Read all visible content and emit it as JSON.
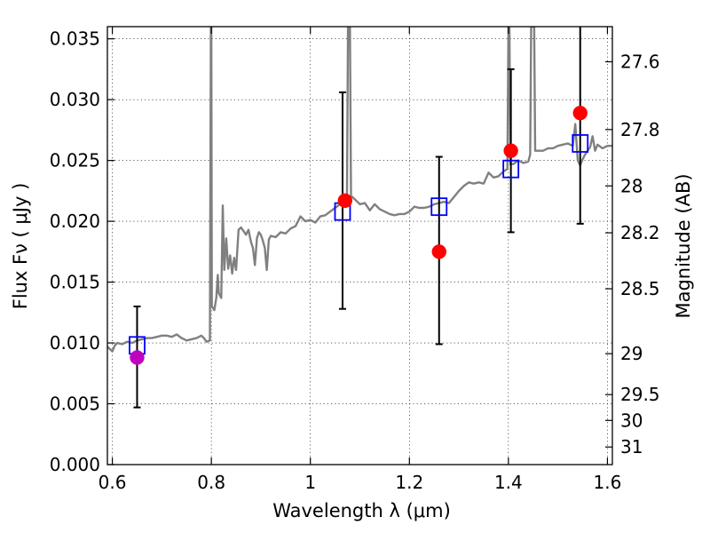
{
  "chart_data": {
    "type": "scatter",
    "xlabel": "Wavelength  λ (μm)",
    "ylabel_left": "Flux  Fν  ( μJy )",
    "ylabel_right": "Magnitude (AB)",
    "xlim": [
      0.59,
      1.61
    ],
    "ylim": [
      0.0,
      0.036
    ],
    "grid": true,
    "x_ticks": [
      {
        "value": 0.6,
        "label": "0.6"
      },
      {
        "value": 0.8,
        "label": "0.8"
      },
      {
        "value": 1.0,
        "label": "1"
      },
      {
        "value": 1.2,
        "label": "1.2"
      },
      {
        "value": 1.4,
        "label": "1.4"
      },
      {
        "value": 1.6,
        "label": "1.6"
      }
    ],
    "y_ticks": [
      {
        "value": 0.0,
        "label": "0.000"
      },
      {
        "value": 0.005,
        "label": "0.005"
      },
      {
        "value": 0.01,
        "label": "0.010"
      },
      {
        "value": 0.015,
        "label": "0.015"
      },
      {
        "value": 0.02,
        "label": "0.020"
      },
      {
        "value": 0.025,
        "label": "0.025"
      },
      {
        "value": 0.03,
        "label": "0.030"
      },
      {
        "value": 0.035,
        "label": "0.035"
      }
    ],
    "mag_ticks": [
      {
        "value": 27.6,
        "label": "27.6"
      },
      {
        "value": 27.8,
        "label": "27.8"
      },
      {
        "value": 28.0,
        "label": "28"
      },
      {
        "value": 28.2,
        "label": "28.2"
      },
      {
        "value": 28.5,
        "label": "28.5"
      },
      {
        "value": 29.0,
        "label": "29"
      },
      {
        "value": 29.5,
        "label": "29.5"
      },
      {
        "value": 30.0,
        "label": "30"
      },
      {
        "value": 31.0,
        "label": "31"
      }
    ],
    "model_spectrum": {
      "color": "#808080",
      "points": [
        [
          0.59,
          0.0097
        ],
        [
          0.595,
          0.0095
        ],
        [
          0.6,
          0.0093
        ],
        [
          0.605,
          0.0098
        ],
        [
          0.61,
          0.01
        ],
        [
          0.62,
          0.0099
        ],
        [
          0.63,
          0.0101
        ],
        [
          0.64,
          0.01
        ],
        [
          0.65,
          0.0102
        ],
        [
          0.66,
          0.0103
        ],
        [
          0.67,
          0.0104
        ],
        [
          0.68,
          0.0104
        ],
        [
          0.69,
          0.0105
        ],
        [
          0.7,
          0.0106
        ],
        [
          0.71,
          0.0106
        ],
        [
          0.72,
          0.0105
        ],
        [
          0.73,
          0.0107
        ],
        [
          0.74,
          0.0104
        ],
        [
          0.75,
          0.0102
        ],
        [
          0.76,
          0.0103
        ],
        [
          0.77,
          0.0104
        ],
        [
          0.78,
          0.0106
        ],
        [
          0.785,
          0.0104
        ],
        [
          0.79,
          0.0101
        ],
        [
          0.797,
          0.0102
        ],
        [
          0.799,
          0.036
        ],
        [
          0.8,
          0.036
        ],
        [
          0.801,
          0.013
        ],
        [
          0.806,
          0.0127
        ],
        [
          0.81,
          0.0137
        ],
        [
          0.813,
          0.0156
        ],
        [
          0.815,
          0.0141
        ],
        [
          0.82,
          0.0137
        ],
        [
          0.823,
          0.0213
        ],
        [
          0.826,
          0.016
        ],
        [
          0.83,
          0.0186
        ],
        [
          0.834,
          0.0161
        ],
        [
          0.838,
          0.0172
        ],
        [
          0.842,
          0.0157
        ],
        [
          0.846,
          0.017
        ],
        [
          0.85,
          0.016
        ],
        [
          0.855,
          0.0193
        ],
        [
          0.86,
          0.0195
        ],
        [
          0.865,
          0.0192
        ],
        [
          0.87,
          0.0189
        ],
        [
          0.875,
          0.0193
        ],
        [
          0.88,
          0.0183
        ],
        [
          0.884,
          0.0178
        ],
        [
          0.888,
          0.0164
        ],
        [
          0.892,
          0.0186
        ],
        [
          0.896,
          0.0191
        ],
        [
          0.9,
          0.0189
        ],
        [
          0.904,
          0.0184
        ],
        [
          0.908,
          0.0178
        ],
        [
          0.912,
          0.016
        ],
        [
          0.916,
          0.0185
        ],
        [
          0.92,
          0.0188
        ],
        [
          0.93,
          0.0187
        ],
        [
          0.94,
          0.0191
        ],
        [
          0.95,
          0.019
        ],
        [
          0.96,
          0.0194
        ],
        [
          0.97,
          0.0196
        ],
        [
          0.98,
          0.0204
        ],
        [
          0.99,
          0.02
        ],
        [
          1.0,
          0.0201
        ],
        [
          1.01,
          0.0199
        ],
        [
          1.02,
          0.0204
        ],
        [
          1.03,
          0.0205
        ],
        [
          1.04,
          0.0208
        ],
        [
          1.05,
          0.0211
        ],
        [
          1.06,
          0.0214
        ],
        [
          1.07,
          0.022
        ],
        [
          1.074,
          0.0222
        ],
        [
          1.076,
          0.036
        ],
        [
          1.08,
          0.036
        ],
        [
          1.082,
          0.0221
        ],
        [
          1.09,
          0.0218
        ],
        [
          1.1,
          0.0214
        ],
        [
          1.11,
          0.0215
        ],
        [
          1.12,
          0.0209
        ],
        [
          1.13,
          0.0214
        ],
        [
          1.14,
          0.021
        ],
        [
          1.15,
          0.0208
        ],
        [
          1.16,
          0.0206
        ],
        [
          1.17,
          0.0205
        ],
        [
          1.18,
          0.0206
        ],
        [
          1.19,
          0.0206
        ],
        [
          1.2,
          0.0208
        ],
        [
          1.21,
          0.0212
        ],
        [
          1.22,
          0.0211
        ],
        [
          1.23,
          0.0211
        ],
        [
          1.24,
          0.0212
        ],
        [
          1.25,
          0.0214
        ],
        [
          1.26,
          0.0215
        ],
        [
          1.27,
          0.0216
        ],
        [
          1.28,
          0.0215
        ],
        [
          1.29,
          0.022
        ],
        [
          1.3,
          0.0225
        ],
        [
          1.31,
          0.0229
        ],
        [
          1.32,
          0.0232
        ],
        [
          1.33,
          0.0231
        ],
        [
          1.34,
          0.0232
        ],
        [
          1.35,
          0.0231
        ],
        [
          1.36,
          0.024
        ],
        [
          1.37,
          0.0236
        ],
        [
          1.38,
          0.0237
        ],
        [
          1.39,
          0.0241
        ],
        [
          1.398,
          0.0243
        ],
        [
          1.4,
          0.036
        ],
        [
          1.402,
          0.036
        ],
        [
          1.404,
          0.0247
        ],
        [
          1.41,
          0.0247
        ],
        [
          1.42,
          0.025
        ],
        [
          1.43,
          0.0248
        ],
        [
          1.44,
          0.0249
        ],
        [
          1.444,
          0.0255
        ],
        [
          1.446,
          0.036
        ],
        [
          1.452,
          0.036
        ],
        [
          1.454,
          0.0258
        ],
        [
          1.46,
          0.0258
        ],
        [
          1.47,
          0.0258
        ],
        [
          1.48,
          0.026
        ],
        [
          1.49,
          0.026
        ],
        [
          1.5,
          0.0262
        ],
        [
          1.51,
          0.0263
        ],
        [
          1.52,
          0.0264
        ],
        [
          1.53,
          0.0262
        ],
        [
          1.535,
          0.028
        ],
        [
          1.54,
          0.025
        ],
        [
          1.545,
          0.0246
        ],
        [
          1.55,
          0.0251
        ],
        [
          1.555,
          0.0255
        ],
        [
          1.56,
          0.0258
        ],
        [
          1.565,
          0.0261
        ],
        [
          1.57,
          0.027
        ],
        [
          1.575,
          0.0258
        ],
        [
          1.58,
          0.0263
        ],
        [
          1.59,
          0.026
        ],
        [
          1.6,
          0.0262
        ],
        [
          1.61,
          0.0262
        ]
      ]
    },
    "error_bars": [
      {
        "x": 0.65,
        "low": 0.0047,
        "high": 0.013
      },
      {
        "x": 1.065,
        "low": 0.0128,
        "high": 0.0306
      },
      {
        "x": 1.26,
        "low": 0.0099,
        "high": 0.0253
      },
      {
        "x": 1.405,
        "low": 0.0191,
        "high": 0.0325
      },
      {
        "x": 1.545,
        "low": 0.0198,
        "high": 0.036
      }
    ],
    "model_bands": {
      "color": "#0000ff",
      "points": [
        {
          "x": 0.65,
          "y": 0.0098
        },
        {
          "x": 1.065,
          "y": 0.0208
        },
        {
          "x": 1.26,
          "y": 0.0212
        },
        {
          "x": 1.405,
          "y": 0.0243
        },
        {
          "x": 1.545,
          "y": 0.0264
        }
      ]
    },
    "observed": {
      "points": [
        {
          "x": 0.65,
          "y": 0.0088,
          "color": "#bf00bf"
        },
        {
          "x": 1.07,
          "y": 0.0217,
          "color": "#ff0000"
        },
        {
          "x": 1.26,
          "y": 0.0175,
          "color": "#ff0000"
        },
        {
          "x": 1.405,
          "y": 0.0258,
          "color": "#ff0000"
        },
        {
          "x": 1.545,
          "y": 0.0289,
          "color": "#ff0000"
        }
      ]
    }
  }
}
